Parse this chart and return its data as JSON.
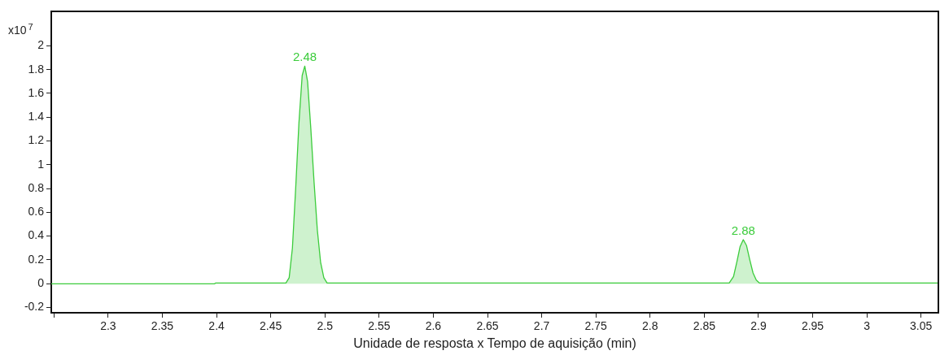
{
  "chart_data": {
    "type": "area",
    "xlabel": "Unidade de resposta x Tempo de aquisição (min)",
    "annotations": [
      "x10$^{7}$",
      {
        "text": "2.48",
        "x": 2.4814,
        "y": 1.83
      },
      {
        "text": "2.88",
        "x": 2.886,
        "y": 0.37
      }
    ],
    "series": [
      {
        "color": "#3ccc3c",
        "x": [
          2.2475,
          2.398,
          2.399,
          2.464,
          2.467,
          2.47,
          2.473,
          2.476,
          2.479,
          2.4814,
          2.484,
          2.487,
          2.49,
          2.493,
          2.496,
          2.499,
          2.502,
          2.873,
          2.877,
          2.88,
          2.883,
          2.886,
          2.889,
          2.892,
          2.895,
          2.898,
          2.901,
          3.066
        ],
        "values": [
          -0.002,
          -0.002,
          0.005,
          0.005,
          0.05,
          0.3,
          0.8,
          1.35,
          1.75,
          1.83,
          1.7,
          1.3,
          0.85,
          0.45,
          0.18,
          0.05,
          0.005,
          0.005,
          0.06,
          0.18,
          0.31,
          0.37,
          0.32,
          0.2,
          0.09,
          0.03,
          0.005,
          0.005
        ]
      }
    ],
    "xlim": [
      2.2475,
      3.066
    ],
    "xticks": [
      {
        "value": 2.25,
        "label": null
      },
      2.3,
      2.35,
      2.4,
      2.45,
      2.5,
      2.55,
      2.6,
      2.65,
      2.7,
      2.75,
      2.8,
      2.85,
      2.9,
      2.95,
      3,
      3.05
    ],
    "ylim": [
      -0.245,
      2.29
    ],
    "yticks": [
      -0.2,
      0,
      0.2,
      0.4,
      0.6,
      0.8,
      1,
      1.2,
      1.4,
      1.6,
      1.8,
      2
    ],
    "grid": false,
    "legend": false,
    "marker": "none",
    "line_style": "solid"
  }
}
